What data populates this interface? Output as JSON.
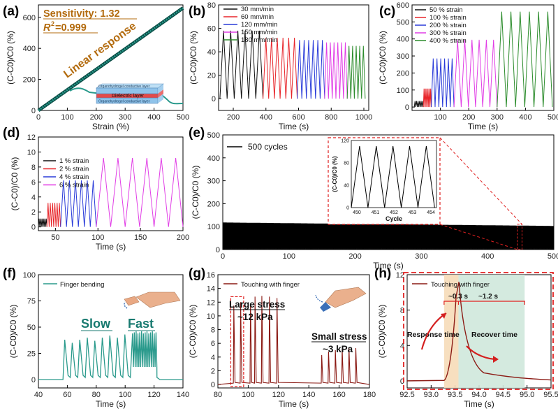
{
  "colors": {
    "black": "#111111",
    "red": "#e8262b",
    "blue": "#2a3bd9",
    "magenta": "#e13ee6",
    "green": "#2c8c2c",
    "teal": "#2a9a8c",
    "darkred": "#8b1a14",
    "orange": "#b36b0e",
    "redbox": "#e02020"
  },
  "chart_data": [
    {
      "panel": "(a)",
      "type": "line",
      "xlabel": "Strain (%)",
      "ylabel": "(C-C0)/C0 (%)",
      "xlim": [
        0,
        500
      ],
      "ylim": [
        0,
        680
      ],
      "xticks": [
        0,
        100,
        200,
        300,
        400,
        500
      ],
      "yticks": [
        0,
        200,
        400,
        600
      ],
      "sensitivity": "Sensitivity: 1.32",
      "r2_label": "R",
      "r2_sup": "2",
      "r2_value": "=0.999",
      "annotation": "Linear response",
      "layers": [
        "Organohydrogel conductive layer",
        "Dielectric layer",
        "Organohydrogel conductive layer"
      ],
      "series": [
        {
          "x": [
            0,
            500
          ],
          "y": [
            0,
            660
          ]
        }
      ]
    },
    {
      "panel": "(b)",
      "type": "line",
      "xlabel": "Time (s)",
      "ylabel": "(C-C0)/C0 (%)",
      "xlim": [
        110,
        1030
      ],
      "ylim": [
        -10,
        80
      ],
      "xticks": [
        200,
        400,
        600,
        800,
        1000
      ],
      "yticks": [
        0,
        20,
        40,
        60,
        80
      ],
      "legend": [
        "30 mm/min",
        "60 mm/min",
        "120 mm/min",
        "150 mm/min",
        "180 mm/min"
      ],
      "segments": [
        {
          "start": 118,
          "end": 382,
          "peak": 58,
          "cycles": 6
        },
        {
          "start": 382,
          "end": 592,
          "peak": 52,
          "cycles": 6
        },
        {
          "start": 592,
          "end": 760,
          "peak": 50,
          "cycles": 6
        },
        {
          "start": 760,
          "end": 898,
          "peak": 48,
          "cycles": 6
        },
        {
          "start": 898,
          "end": 1008,
          "peak": 45,
          "cycles": 5
        }
      ]
    },
    {
      "panel": "(c)",
      "type": "line",
      "xlabel": "Time (s)",
      "ylabel": "(C-C0)/C0 (%)",
      "xlim": [
        0,
        500
      ],
      "ylim": [
        -20,
        600
      ],
      "xticks": [
        100,
        200,
        300,
        400,
        500
      ],
      "yticks": [
        0,
        100,
        200,
        300,
        400,
        500,
        600
      ],
      "legend": [
        "50 % strain",
        "100 % strain",
        "200 % strain",
        "300 % strain",
        "400 % strain"
      ],
      "segments": [
        {
          "start": 8,
          "end": 40,
          "peak": 35,
          "cycles": 6
        },
        {
          "start": 40,
          "end": 68,
          "peak": 108,
          "cycles": 6
        },
        {
          "start": 68,
          "end": 148,
          "peak": 285,
          "cycles": 6
        },
        {
          "start": 148,
          "end": 300,
          "peak": 395,
          "cycles": 6
        },
        {
          "start": 300,
          "end": 495,
          "peak": 560,
          "cycles": 6
        }
      ]
    },
    {
      "panel": "(d)",
      "type": "line",
      "xlabel": "Time (s)",
      "ylabel": "(C-C0)/C0 (%)",
      "xlim": [
        30,
        200
      ],
      "ylim": [
        -0.5,
        12
      ],
      "xticks": [
        50,
        100,
        150,
        200
      ],
      "yticks": [
        0,
        2,
        4,
        6,
        8,
        10,
        12
      ],
      "legend": [
        "1 % strain",
        "2 % strain",
        "4 % strain",
        "6 % strain"
      ],
      "segments": [
        {
          "start": 30,
          "end": 40,
          "peak": 1.1,
          "cycles": 6
        },
        {
          "start": 40,
          "end": 56,
          "peak": 3.2,
          "cycles": 6
        },
        {
          "start": 56,
          "end": 98,
          "peak": 6.2,
          "cycles": 6
        },
        {
          "start": 98,
          "end": 200,
          "peak": 9.2,
          "cycles": 6
        }
      ]
    },
    {
      "panel": "(e)",
      "type": "line",
      "xlabel": "Time (s)",
      "ylabel": "(C-C0)/C0 (%)",
      "xlim": [
        0,
        500
      ],
      "ylim": [
        0,
        500
      ],
      "xticks": [
        0,
        100,
        200,
        300,
        400,
        500
      ],
      "yticks": [
        0,
        100,
        200,
        300,
        400,
        500
      ],
      "legend": [
        "500 cycles"
      ],
      "band_top": 118,
      "band_bottom": 0,
      "inset": {
        "xlabel": "Cycle",
        "ylabel": "(C-C0)/C0 (%)",
        "xticks": [
          450,
          451,
          452,
          453,
          454
        ],
        "yticks": [
          0,
          40,
          80,
          120
        ],
        "peak": 110
      }
    },
    {
      "panel": "(f)",
      "type": "line",
      "xlabel": "Time (s)",
      "ylabel": "(C-C0)/C0 (%)",
      "xlim": [
        40,
        140
      ],
      "ylim": [
        -8,
        100
      ],
      "xticks": [
        40,
        60,
        80,
        100,
        120,
        140
      ],
      "yticks": [
        0,
        25,
        50,
        75,
        100
      ],
      "legend": [
        "Finger bending"
      ],
      "slow_label": "Slow",
      "fast_label": "Fast"
    },
    {
      "panel": "(g)",
      "type": "line",
      "xlabel": "Time (s)",
      "ylabel": "(C-C0)/C0 (%)",
      "xlim": [
        80,
        180
      ],
      "ylim": [
        -0.5,
        16
      ],
      "xticks": [
        80,
        100,
        120,
        140,
        160,
        180
      ],
      "yticks": [
        0,
        2,
        4,
        6,
        8,
        10,
        12,
        14,
        16
      ],
      "legend": [
        "Touching with finger"
      ],
      "large_label": "Large stress",
      "large_value": "~12 kPa",
      "small_label": "Small stress",
      "small_value": "~3 kPa",
      "large_peaks": [
        90.5,
        95,
        101.5,
        104.5,
        109,
        114,
        119
      ],
      "small_peaks": [
        148.5,
        153,
        157.5,
        162,
        166.5,
        171
      ]
    },
    {
      "panel": "(h)",
      "type": "line",
      "xlabel": "Time (s)",
      "ylabel": "(C-C0)/C0 (%)",
      "xlim": [
        92.5,
        95.5
      ],
      "ylim": [
        -0.8,
        12
      ],
      "xticks": [
        92.5,
        93.0,
        93.5,
        94.0,
        94.5,
        95.0,
        95.5
      ],
      "yticks": [
        0,
        4,
        8,
        12
      ],
      "legend": [
        "Touching with finger"
      ],
      "response_label": "Response time",
      "recover_label": "Recover time",
      "response_value": "~0.3 s",
      "recover_value": "~1.2 s"
    }
  ]
}
